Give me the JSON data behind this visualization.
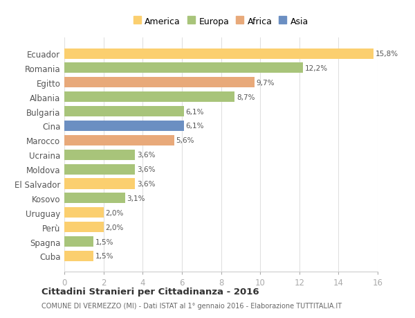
{
  "countries": [
    "Ecuador",
    "Romania",
    "Egitto",
    "Albania",
    "Bulgaria",
    "Cina",
    "Marocco",
    "Ucraina",
    "Moldova",
    "El Salvador",
    "Kosovo",
    "Uruguay",
    "Perù",
    "Spagna",
    "Cuba"
  ],
  "values": [
    15.8,
    12.2,
    9.7,
    8.7,
    6.1,
    6.1,
    5.6,
    3.6,
    3.6,
    3.6,
    3.1,
    2.0,
    2.0,
    1.5,
    1.5
  ],
  "labels": [
    "15,8%",
    "12,2%",
    "9,7%",
    "8,7%",
    "6,1%",
    "6,1%",
    "5,6%",
    "3,6%",
    "3,6%",
    "3,6%",
    "3,1%",
    "2,0%",
    "2,0%",
    "1,5%",
    "1,5%"
  ],
  "colors": [
    "#FBCF6F",
    "#A8C47A",
    "#E8A97A",
    "#A8C47A",
    "#A8C47A",
    "#6B8FC2",
    "#E8A97A",
    "#A8C47A",
    "#A8C47A",
    "#FBCF6F",
    "#A8C47A",
    "#FBCF6F",
    "#FBCF6F",
    "#A8C47A",
    "#FBCF6F"
  ],
  "legend": [
    {
      "label": "America",
      "color": "#FBCF6F"
    },
    {
      "label": "Europa",
      "color": "#A8C47A"
    },
    {
      "label": "Africa",
      "color": "#E8A97A"
    },
    {
      "label": "Asia",
      "color": "#6B8FC2"
    }
  ],
  "title": "Cittadini Stranieri per Cittadinanza - 2016",
  "subtitle": "COMUNE DI VERMEZZO (MI) - Dati ISTAT al 1° gennaio 2016 - Elaborazione TUTTITALIA.IT",
  "xlim": [
    0,
    16
  ],
  "xticks": [
    0,
    2,
    4,
    6,
    8,
    10,
    12,
    14,
    16
  ],
  "bg_color": "#ffffff",
  "bar_height": 0.72
}
